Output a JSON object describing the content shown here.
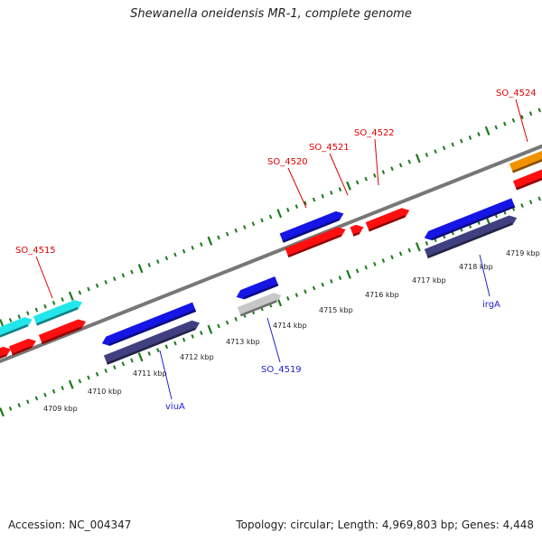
{
  "title": "Shewanella oneidensis MR-1, complete genome",
  "accession": "Accession: NC_004347",
  "summary": "Topology: circular; Length: 4,969,803 bp; Genes: 4,448",
  "colors": {
    "backbone": "#777777",
    "ruler": "#1a7a1a",
    "cyan": "#22e6ea",
    "red": "#ff0f0f",
    "blue": "#1515e6",
    "navy": "#404080",
    "gray": "#c8c8c8",
    "orange": "#f39200",
    "label_red": "#e00000",
    "label_blue": "#2222cc"
  },
  "scale_labels": [
    "4709 kbp",
    "4710 kbp",
    "4711 kbp",
    "4712 kbp",
    "4713 kbp",
    "4714 kbp",
    "4715 kbp",
    "4716 kbp",
    "4717 kbp",
    "4718 kbp",
    "4719 kbp"
  ],
  "gene_labels_top": [
    "SO_4515",
    "SO_4520",
    "SO_4521",
    "SO_4522",
    "SO_4524"
  ],
  "gene_labels_bottom": [
    "viuA",
    "SO_4519",
    "irgA"
  ]
}
